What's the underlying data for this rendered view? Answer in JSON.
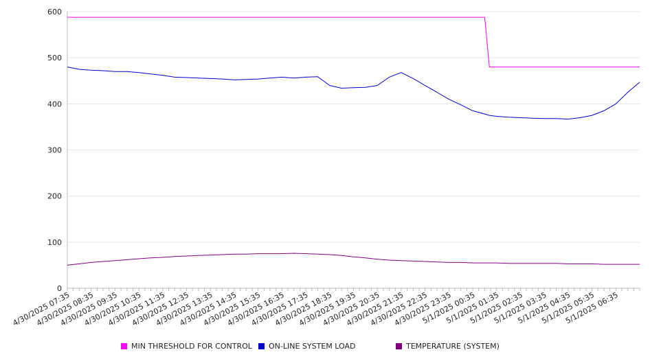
{
  "chart_data": {
    "type": "line",
    "ylim": [
      0,
      600
    ],
    "yticks": [
      0,
      100,
      200,
      300,
      400,
      500,
      600
    ],
    "grid": true,
    "legend_position": "bottom",
    "x_tick_labels": [
      "4/30/2025 07:35",
      "4/30/2025 08:35",
      "4/30/2025 09:35",
      "4/30/2025 10:35",
      "4/30/2025 11:35",
      "4/30/2025 12:35",
      "4/30/2025 13:35",
      "4/30/2025 14:35",
      "4/30/2025 15:35",
      "4/30/2025 16:35",
      "4/30/2025 17:35",
      "4/30/2025 18:35",
      "4/30/2025 19:35",
      "4/30/2025 20:35",
      "4/30/2025 21:35",
      "4/30/2025 22:35",
      "4/30/2025 23:35",
      "5/1/2025 00:35",
      "5/1/2025 01:35",
      "5/1/2025 02:35",
      "5/1/2025 03:35",
      "5/1/2025 04:35",
      "5/1/2025 05:35",
      "5/1/2025 06:35"
    ],
    "x_hours": [
      0,
      0.5,
      1,
      1.5,
      2,
      2.5,
      3,
      3.5,
      4,
      4.5,
      5,
      5.5,
      6,
      6.5,
      7,
      7.5,
      8,
      8.5,
      9,
      9.5,
      10,
      10.5,
      11,
      11.5,
      12,
      12.5,
      13,
      13.5,
      14,
      14.5,
      15,
      15.5,
      16,
      16.5,
      17,
      17.5,
      17.7,
      18,
      18.5,
      19,
      19.5,
      20,
      20.5,
      21,
      21.5,
      22,
      22.5,
      23,
      23.5,
      24
    ],
    "series": [
      {
        "name": "MIN THRESHOLD FOR CONTROL",
        "color": "#ff00ff",
        "values": [
          588,
          588,
          588,
          588,
          588,
          588,
          588,
          588,
          588,
          588,
          588,
          588,
          588,
          588,
          588,
          588,
          588,
          588,
          588,
          588,
          588,
          588,
          588,
          588,
          588,
          588,
          588,
          588,
          588,
          588,
          588,
          588,
          588,
          588,
          588,
          588,
          480,
          480,
          480,
          480,
          480,
          480,
          480,
          480,
          480,
          480,
          480,
          480,
          480,
          480
        ]
      },
      {
        "name": "ON-LINE SYSTEM LOAD",
        "color": "#0000cc",
        "values": [
          480,
          475,
          473,
          472,
          470,
          470,
          468,
          465,
          462,
          458,
          457,
          456,
          455,
          454,
          452,
          453,
          454,
          456,
          458,
          456,
          458,
          459,
          440,
          434,
          435,
          436,
          440,
          458,
          468,
          455,
          440,
          425,
          410,
          398,
          385,
          378,
          375,
          373,
          371,
          370,
          369,
          368,
          368,
          367,
          370,
          375,
          385,
          400,
          425,
          447
        ]
      },
      {
        "name": "TEMPERATURE (SYSTEM)",
        "color": "#800080",
        "values": [
          50,
          53,
          56,
          58,
          60,
          62,
          64,
          66,
          67,
          69,
          70,
          71,
          72,
          73,
          74,
          74,
          75,
          75,
          75,
          76,
          75,
          74,
          73,
          71,
          68,
          66,
          63,
          61,
          60,
          59,
          58,
          57,
          56,
          56,
          55,
          55,
          55,
          55,
          54,
          54,
          54,
          54,
          54,
          53,
          53,
          53,
          52,
          52,
          52,
          52
        ]
      }
    ]
  }
}
